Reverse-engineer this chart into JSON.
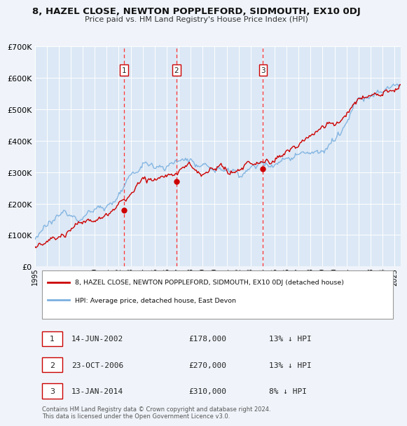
{
  "title": "8, HAZEL CLOSE, NEWTON POPPLEFORD, SIDMOUTH, EX10 0DJ",
  "subtitle": "Price paid vs. HM Land Registry's House Price Index (HPI)",
  "background_color": "#f0f4fa",
  "plot_background": "#dce8f5",
  "grid_color": "#ffffff",
  "ylim": [
    0,
    700000
  ],
  "yticks": [
    0,
    100000,
    200000,
    300000,
    400000,
    500000,
    600000,
    700000
  ],
  "ytick_labels": [
    "£0",
    "£100K",
    "£200K",
    "£300K",
    "£400K",
    "£500K",
    "£600K",
    "£700K"
  ],
  "xmin": 1995.0,
  "xmax": 2025.5,
  "xticks": [
    1995,
    1996,
    1997,
    1998,
    1999,
    2000,
    2001,
    2002,
    2003,
    2004,
    2005,
    2006,
    2007,
    2008,
    2009,
    2010,
    2011,
    2012,
    2013,
    2014,
    2015,
    2016,
    2017,
    2018,
    2019,
    2020,
    2021,
    2022,
    2023,
    2024,
    2025
  ],
  "purchase_dates": [
    2002.452,
    2006.814,
    2014.036
  ],
  "purchase_prices": [
    178000,
    270000,
    310000
  ],
  "purchase_labels": [
    "1",
    "2",
    "3"
  ],
  "vline_color": "#ff3333",
  "marker_color": "#cc0000",
  "hpi_color": "#7ab0e0",
  "price_color": "#cc0000",
  "table_rows": [
    {
      "num": "1",
      "date": "14-JUN-2002",
      "price": "£178,000",
      "pct": "13% ↓ HPI"
    },
    {
      "num": "2",
      "date": "23-OCT-2006",
      "price": "£270,000",
      "pct": "13% ↓ HPI"
    },
    {
      "num": "3",
      "date": "13-JAN-2014",
      "price": "£310,000",
      "pct": "8% ↓ HPI"
    }
  ],
  "footer": "Contains HM Land Registry data © Crown copyright and database right 2024.\nThis data is licensed under the Open Government Licence v3.0.",
  "legend_line1": "8, HAZEL CLOSE, NEWTON POPPLEFORD, SIDMOUTH, EX10 0DJ (detached house)",
  "legend_line2": "HPI: Average price, detached house, East Devon"
}
